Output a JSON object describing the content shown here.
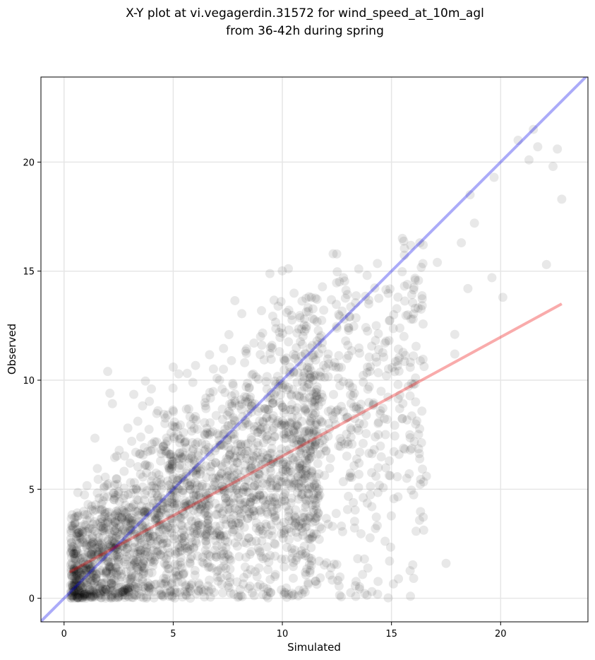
{
  "chart_data": {
    "type": "scatter",
    "title_line1": "X-Y plot at vi.vegagerdin.31572 for wind_speed_at_10m_agl",
    "title_line2": "from 36-42h during spring",
    "xlabel": "Simulated",
    "ylabel": "Observed",
    "xlim": [
      -1.06,
      24.0
    ],
    "ylim": [
      -1.08,
      23.9
    ],
    "xticks": [
      0,
      5,
      10,
      15,
      20
    ],
    "yticks": [
      0,
      5,
      10,
      15,
      20
    ],
    "grid": true,
    "colors": {
      "points": "#000000",
      "identity_line": "#0000ee",
      "fit_line": "#ee0000",
      "grid": "#e6e6e6"
    },
    "lines": [
      {
        "role": "identity",
        "x": [
          -1.06,
          24.0
        ],
        "y": [
          -1.06,
          24.0
        ]
      },
      {
        "role": "regression",
        "x": [
          0.25,
          22.8
        ],
        "y": [
          1.2,
          13.5
        ]
      }
    ],
    "point_cloud": {
      "count": 2600,
      "x_mode_range": [
        2,
        10
      ],
      "y_mode_range": [
        0,
        8
      ],
      "x_max": 22.8,
      "y_max": 21.5,
      "note": "dense cloud of semi-transparent points"
    },
    "x": [
      0.3,
      0.5,
      0.7,
      0.9,
      1.1,
      1.3,
      1.5,
      1.7,
      1.9,
      2.1,
      2.3,
      2.5,
      2.7,
      2.9,
      3.1,
      3.3,
      3.5,
      3.7,
      3.9,
      4.1,
      4.3,
      4.5,
      4.7,
      4.9,
      5.1,
      5.3,
      5.5,
      5.7,
      5.9,
      6.1,
      6.3,
      6.5,
      6.7,
      6.9,
      7.1,
      7.3,
      7.5,
      7.7,
      7.9,
      8.1,
      8.3,
      8.5,
      8.7,
      8.9,
      9.1,
      9.3,
      9.5,
      9.7,
      9.9,
      10.1,
      10.3,
      10.5,
      10.7,
      10.9,
      11.1,
      11.3,
      11.5,
      11.7,
      11.9,
      12.1,
      12.3,
      12.5,
      12.7,
      12.9,
      13.1,
      13.3,
      13.5,
      13.7,
      13.9,
      14.1,
      14.3,
      14.5,
      14.7,
      14.9,
      15.1,
      15.3,
      15.5,
      15.7,
      15.9,
      16.1,
      16.3,
      16.6,
      17.1,
      17.5,
      17.9,
      18.2,
      18.5,
      18.6,
      19.6,
      19.7,
      20.1,
      20.8,
      21.3,
      21.5,
      21.7,
      22.1,
      22.4,
      22.6,
      22.8,
      1.8,
      2.4,
      3.6,
      4.4,
      5.6,
      6.6,
      7.4,
      8.6,
      9.6,
      10.6,
      11.6,
      12.4,
      13.6,
      14.4,
      15.3,
      4.0,
      6.0,
      8.0,
      3.0,
      5.0,
      7.0,
      9.0,
      11.0,
      13.0,
      2.0,
      6.4,
      7.8,
      10.2,
      12.8,
      14.8,
      16.0,
      17.9,
      18.8
    ],
    "y": [
      0.6,
      1.9,
      2.9,
      1.4,
      4.3,
      2.2,
      1.1,
      3.3,
      0.4,
      9.4,
      1.2,
      4.9,
      3.6,
      2.3,
      7.2,
      5.0,
      1.9,
      6.1,
      3.1,
      2.2,
      8.6,
      4.4,
      1.1,
      5.9,
      3.9,
      7.3,
      2.6,
      6.4,
      9.9,
      3.1,
      4.2,
      8.7,
      6.5,
      2.2,
      5.6,
      10.5,
      7.9,
      3.4,
      5.0,
      9.1,
      6.1,
      4.3,
      11.7,
      7.0,
      3.1,
      8.3,
      5.5,
      9.8,
      6.6,
      4.5,
      12.3,
      7.7,
      2.8,
      9.5,
      6.0,
      8.1,
      4.5,
      10.2,
      6.9,
      11.2,
      3.3,
      8.6,
      7.2,
      11.8,
      5.6,
      9.4,
      15.1,
      7.1,
      10.6,
      4.2,
      12.5,
      8.6,
      11.7,
      6.3,
      13.0,
      9.8,
      16.5,
      5.5,
      12.8,
      10.1,
      16.3,
      5.6,
      15.4,
      1.6,
      12.1,
      16.3,
      14.2,
      18.5,
      14.7,
      19.3,
      13.8,
      21.0,
      20.1,
      21.5,
      20.7,
      15.3,
      19.8,
      20.6,
      18.3,
      3.2,
      4.0,
      5.1,
      2.0,
      6.9,
      3.3,
      4.6,
      2.6,
      7.8,
      5.4,
      6.6,
      10.8,
      8.9,
      7.5,
      10.9,
      9.6,
      5.3,
      4.8,
      0.5,
      10.6,
      3.0,
      12.0,
      9.7,
      11.6,
      10.4,
      1.6,
      7.3,
      13.1,
      14.7,
      8.2,
      9.8,
      11.2,
      17.2
    ]
  }
}
